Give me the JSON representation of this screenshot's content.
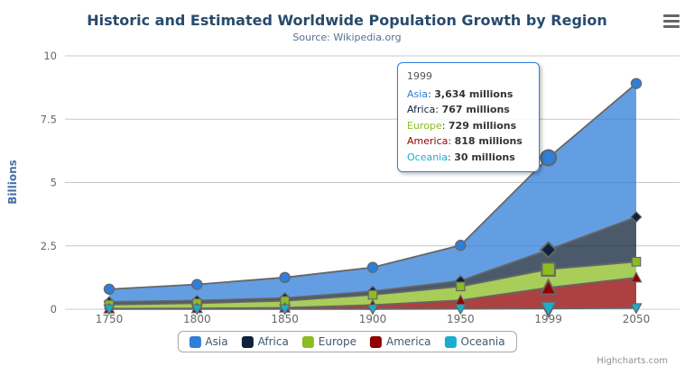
{
  "chart_data": {
    "type": "area",
    "stacking": "normal",
    "title": "Historic and Estimated Worldwide Population Growth by Region",
    "subtitle": "Source: Wikipedia.org",
    "xlabel": "",
    "ylabel": "Billions",
    "unit": "millions",
    "categories": [
      "1750",
      "1800",
      "1850",
      "1900",
      "1950",
      "1999",
      "2050"
    ],
    "series": [
      {
        "name": "Asia",
        "color": "#2f7ed8",
        "marker": "circle",
        "values": [
          502,
          635,
          809,
          947,
          1402,
          3634,
          5268
        ]
      },
      {
        "name": "Africa",
        "color": "#0d233a",
        "marker": "diamond",
        "values": [
          106,
          107,
          111,
          133,
          221,
          767,
          1766
        ]
      },
      {
        "name": "Europe",
        "color": "#8bbc21",
        "marker": "square",
        "values": [
          163,
          203,
          276,
          408,
          547,
          729,
          628
        ]
      },
      {
        "name": "America",
        "color": "#910000",
        "marker": "triangle",
        "values": [
          18,
          31,
          54,
          156,
          339,
          818,
          1201
        ]
      },
      {
        "name": "Oceania",
        "color": "#1aadce",
        "marker": "triangle-down",
        "values": [
          2,
          2,
          2,
          6,
          13,
          30,
          46
        ]
      }
    ],
    "ylim": [
      0,
      10
    ],
    "yticks": [
      0,
      2.5,
      5,
      7.5,
      10
    ],
    "grid": true,
    "legend_position": "bottom",
    "hover_index": 5
  },
  "tooltip": {
    "header": "1999",
    "border_color": "#2f7ed8",
    "rows": [
      {
        "name": "Asia",
        "color": "#2f7ed8",
        "value_text": "3,634 millions"
      },
      {
        "name": "Africa",
        "color": "#0d233a",
        "value_text": "767 millions"
      },
      {
        "name": "Europe",
        "color": "#8bbc21",
        "value_text": "729 millions"
      },
      {
        "name": "America",
        "color": "#910000",
        "value_text": "818 millions"
      },
      {
        "name": "Oceania",
        "color": "#1aadce",
        "value_text": "30 millions"
      }
    ]
  },
  "credits": "Highcharts.com",
  "icons": {
    "context_menu": "hamburger-menu"
  }
}
